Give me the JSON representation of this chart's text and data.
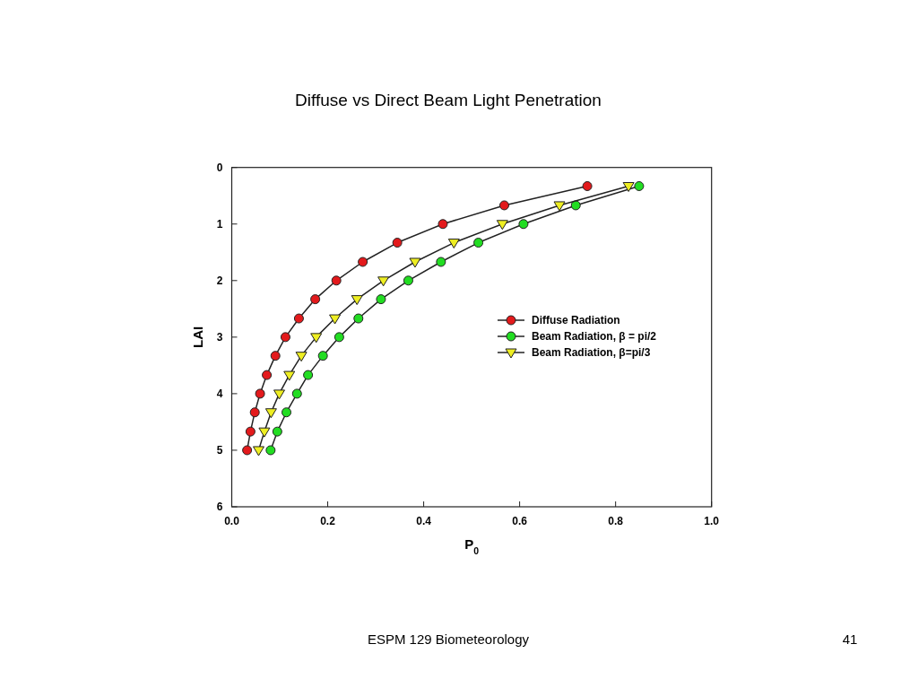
{
  "chart_data": {
    "type": "line",
    "title": "Diffuse vs Direct Beam Light Penetration",
    "xlabel": "P$_{0}$",
    "ylabel": "LAI",
    "xlim": [
      0,
      1
    ],
    "xticks": [
      {
        "value": 0,
        "label": "0.0"
      },
      0.2,
      0.4,
      0.6,
      0.8,
      {
        "value": 1,
        "label": "1.0"
      }
    ],
    "ylim": [
      6,
      0
    ],
    "yticks": [
      0,
      1,
      2,
      3,
      4,
      5,
      6
    ],
    "legend": "right",
    "line_style": "solid",
    "series": [
      {
        "name": "Diffuse Radiation",
        "color": "#e31a1c",
        "marker": "circle",
        "x": [
          0.741,
          0.568,
          0.44,
          0.345,
          0.273,
          0.218,
          0.174,
          0.14,
          0.112,
          0.091,
          0.073,
          0.059,
          0.048,
          0.039,
          0.032
        ],
        "values": [
          0.33,
          0.67,
          1,
          1.33,
          1.67,
          2,
          2.33,
          2.67,
          3,
          3.33,
          3.67,
          4,
          4.33,
          4.67,
          5
        ]
      },
      {
        "name": "Beam Radiation, β = pi/2",
        "color": "#22dd22",
        "marker": "circle",
        "x": [
          0.849,
          0.717,
          0.608,
          0.514,
          0.436,
          0.368,
          0.311,
          0.264,
          0.224,
          0.19,
          0.159,
          0.136,
          0.114,
          0.095,
          0.081
        ],
        "values": [
          0.33,
          0.67,
          1,
          1.33,
          1.67,
          2,
          2.33,
          2.67,
          3,
          3.33,
          3.67,
          4,
          4.33,
          4.67,
          5
        ]
      },
      {
        "name": "Beam Radiation, β=pi/3",
        "color": "#eeee22",
        "marker": "triangle",
        "x": [
          0.827,
          0.683,
          0.564,
          0.463,
          0.382,
          0.316,
          0.261,
          0.215,
          0.176,
          0.145,
          0.12,
          0.099,
          0.082,
          0.068,
          0.056
        ],
        "values": [
          0.33,
          0.67,
          1,
          1.33,
          1.67,
          2,
          2.33,
          2.67,
          3,
          3.33,
          3.67,
          4,
          4.33,
          4.67,
          5
        ]
      }
    ],
    "annotations": [
      "ESPM 129 Biometeorology",
      "41"
    ]
  }
}
